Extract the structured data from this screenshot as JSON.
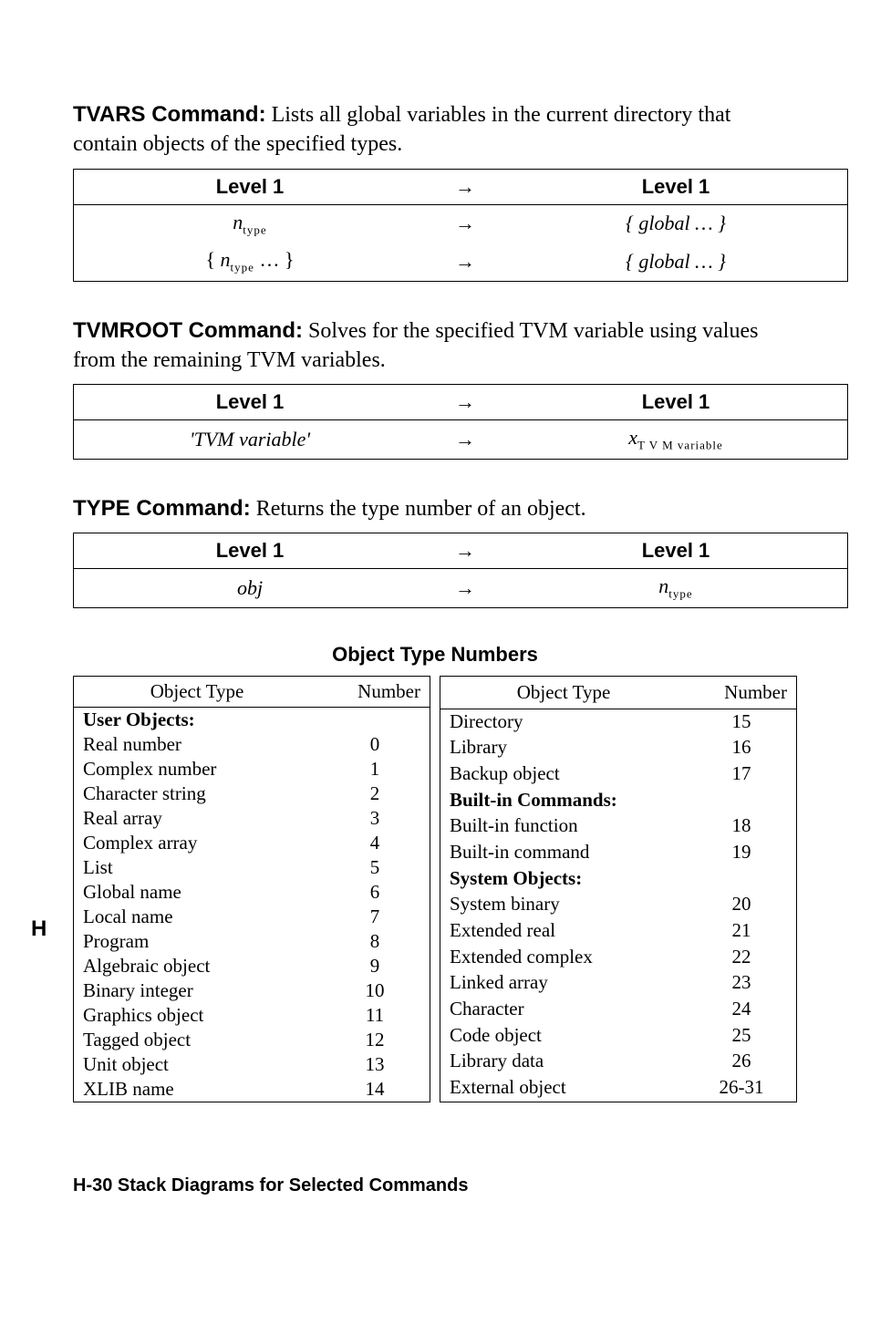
{
  "page": {
    "side_tab": "H",
    "footer": "H-30   Stack Diagrams for Selected Commands"
  },
  "commands": {
    "tvars": {
      "name": "TVARS Command:",
      "desc": "Lists all global variables in the current directory that contain objects of the specified types.",
      "header_in": "Level 1",
      "header_out": "Level 1",
      "arrow": "→",
      "rows": [
        {
          "in_pref": "",
          "in_var": "n",
          "in_sub": "type",
          "in_suf": "",
          "out": "{ global  …  }"
        },
        {
          "in_pref": "{ ",
          "in_var": "n",
          "in_sub": "type",
          "in_suf": "  … }",
          "out": "{ global  …  }"
        }
      ]
    },
    "tvmroot": {
      "name": "TVMROOT Command:",
      "desc": "Solves for the specified TVM variable using values from the remaining TVM variables.",
      "header_in": "Level 1",
      "header_out": "Level 1",
      "arrow": "→",
      "row": {
        "in": "'TVM variable'",
        "out_var": "x",
        "out_sub": "T V M variable"
      }
    },
    "type": {
      "name": "TYPE Command:",
      "desc": "Returns the type number of an object.",
      "header_in": "Level 1",
      "header_out": "Level 1",
      "arrow": "→",
      "row": {
        "in": "obj",
        "out_var": "n",
        "out_sub": "type"
      }
    }
  },
  "object_types": {
    "title": "Object Type Numbers",
    "col_type": "Object Type",
    "col_num": "Number",
    "left": [
      {
        "label": "User Objects:",
        "num": "",
        "section": true
      },
      {
        "label": "Real number",
        "num": "0"
      },
      {
        "label": "Complex number",
        "num": "1"
      },
      {
        "label": "Character string",
        "num": "2"
      },
      {
        "label": "Real array",
        "num": "3"
      },
      {
        "label": "Complex array",
        "num": "4"
      },
      {
        "label": "List",
        "num": "5"
      },
      {
        "label": "Global name",
        "num": "6"
      },
      {
        "label": "Local name",
        "num": "7"
      },
      {
        "label": "Program",
        "num": "8"
      },
      {
        "label": "Algebraic object",
        "num": "9"
      },
      {
        "label": "Binary integer",
        "num": "10"
      },
      {
        "label": "Graphics object",
        "num": "11"
      },
      {
        "label": "Tagged object",
        "num": "12"
      },
      {
        "label": "Unit object",
        "num": "13"
      },
      {
        "label": "XLIB name",
        "num": "14"
      }
    ],
    "right": [
      {
        "label": "Directory",
        "num": "15"
      },
      {
        "label": "Library",
        "num": "16"
      },
      {
        "label": "Backup object",
        "num": "17"
      },
      {
        "label": "Built-in Commands:",
        "num": "",
        "section": true
      },
      {
        "label": "Built-in function",
        "num": "18"
      },
      {
        "label": "Built-in command",
        "num": "19"
      },
      {
        "label": "System Objects:",
        "num": "",
        "section": true
      },
      {
        "label": "System binary",
        "num": "20"
      },
      {
        "label": "Extended real",
        "num": "21"
      },
      {
        "label": "Extended complex",
        "num": "22"
      },
      {
        "label": "Linked array",
        "num": "23"
      },
      {
        "label": "Character",
        "num": "24"
      },
      {
        "label": "Code object",
        "num": "25"
      },
      {
        "label": "Library data",
        "num": "26"
      },
      {
        "label": "External object",
        "num": "26-31"
      }
    ]
  }
}
